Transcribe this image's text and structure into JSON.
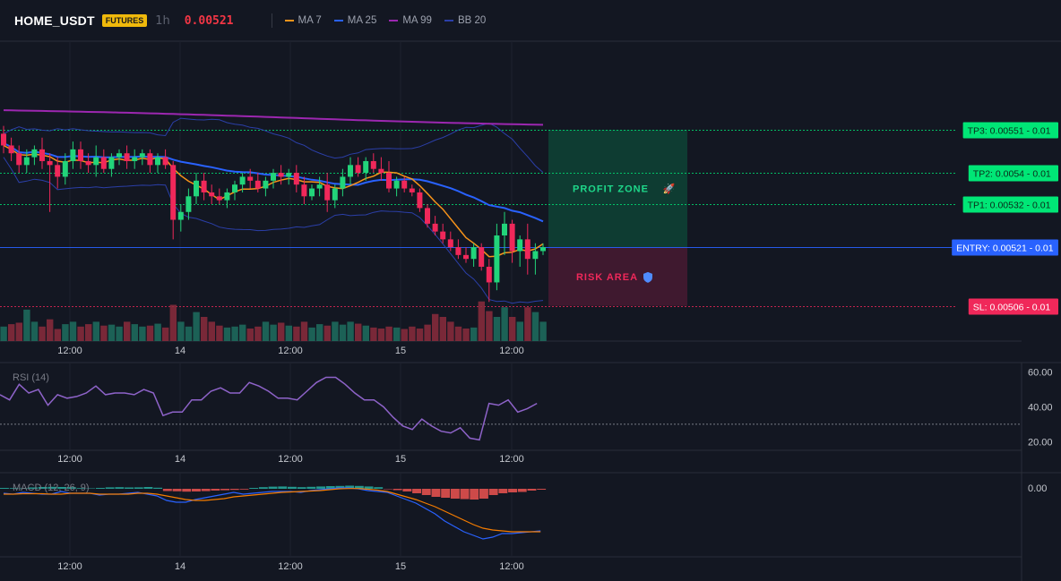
{
  "header": {
    "symbol": "HOME_USDT",
    "badge": "FUTURES",
    "timeframe": "1h",
    "price": "0.00521",
    "legend": [
      {
        "label": "MA 7",
        "color": "#f7931a"
      },
      {
        "label": "MA 25",
        "color": "#2962ff"
      },
      {
        "label": "MA 99",
        "color": "#9c27b0"
      },
      {
        "label": "BB 20",
        "color": "#2b3fa8"
      }
    ]
  },
  "colors": {
    "up": "#22d47a",
    "down": "#f0285a",
    "ma7": "#f7931a",
    "ma25": "#2962ff",
    "ma99": "#9c27b0",
    "bb": "#2b3fa8",
    "rsi": "#8e63c9",
    "macd": "#2962ff",
    "signal": "#f57c00"
  },
  "chart_data": [
    {
      "type": "candlestick",
      "x_ticks": [
        "12:00",
        "14",
        "12:00",
        "15",
        "12:00"
      ],
      "candles_ohlc": [
        [
          0.0055,
          0.00552,
          0.00545,
          0.00547
        ],
        [
          0.00547,
          0.00549,
          0.00543,
          0.00545
        ],
        [
          0.00545,
          0.00547,
          0.0054,
          0.00542
        ],
        [
          0.00542,
          0.00546,
          0.0054,
          0.00544
        ],
        [
          0.00544,
          0.00547,
          0.00542,
          0.00546
        ],
        [
          0.00546,
          0.00549,
          0.00541,
          0.00543
        ],
        [
          0.00543,
          0.00545,
          0.0053,
          0.00542
        ],
        [
          0.00542,
          0.00544,
          0.00536,
          0.00539
        ],
        [
          0.00539,
          0.00545,
          0.00537,
          0.00543
        ],
        [
          0.00543,
          0.00548,
          0.00541,
          0.00546
        ],
        [
          0.00546,
          0.00548,
          0.00541,
          0.00543
        ],
        [
          0.00543,
          0.00545,
          0.0054,
          0.00542
        ],
        [
          0.00542,
          0.00547,
          0.00539,
          0.00544
        ],
        [
          0.00544,
          0.00546,
          0.0054,
          0.00541
        ],
        [
          0.00541,
          0.00545,
          0.00539,
          0.00544
        ],
        [
          0.00544,
          0.00546,
          0.00542,
          0.00545
        ],
        [
          0.00545,
          0.00547,
          0.00541,
          0.00543
        ],
        [
          0.00543,
          0.00546,
          0.00541,
          0.00544
        ],
        [
          0.00544,
          0.00546,
          0.00542,
          0.00545
        ],
        [
          0.00545,
          0.00546,
          0.0054,
          0.00542
        ],
        [
          0.00542,
          0.00545,
          0.0054,
          0.00544
        ],
        [
          0.00544,
          0.00546,
          0.00541,
          0.00542
        ],
        [
          0.00542,
          0.00543,
          0.00523,
          0.00528
        ],
        [
          0.00528,
          0.00532,
          0.00525,
          0.0053
        ],
        [
          0.0053,
          0.00536,
          0.00528,
          0.00534
        ],
        [
          0.00534,
          0.0054,
          0.00532,
          0.00538
        ],
        [
          0.00538,
          0.0054,
          0.00533,
          0.00535
        ],
        [
          0.00535,
          0.00537,
          0.00532,
          0.00534
        ],
        [
          0.00534,
          0.00536,
          0.00532,
          0.00533
        ],
        [
          0.00533,
          0.00536,
          0.00531,
          0.00535
        ],
        [
          0.00535,
          0.00538,
          0.00533,
          0.00537
        ],
        [
          0.00537,
          0.0054,
          0.00535,
          0.00539
        ],
        [
          0.00539,
          0.00541,
          0.00536,
          0.00538
        ],
        [
          0.00538,
          0.0054,
          0.00535,
          0.00536
        ],
        [
          0.00536,
          0.00539,
          0.00534,
          0.00538
        ],
        [
          0.00538,
          0.00541,
          0.00536,
          0.0054
        ],
        [
          0.0054,
          0.00542,
          0.00537,
          0.00539
        ],
        [
          0.00539,
          0.00541,
          0.00537,
          0.0054
        ],
        [
          0.0054,
          0.00542,
          0.00535,
          0.00537
        ],
        [
          0.00537,
          0.00539,
          0.00532,
          0.00534
        ],
        [
          0.00534,
          0.00537,
          0.00533,
          0.00536
        ],
        [
          0.00536,
          0.00539,
          0.00534,
          0.00537
        ],
        [
          0.00537,
          0.0054,
          0.0053,
          0.00533
        ],
        [
          0.00533,
          0.00537,
          0.00531,
          0.00536
        ],
        [
          0.00536,
          0.00541,
          0.00534,
          0.00539
        ],
        [
          0.00539,
          0.00544,
          0.00537,
          0.00542
        ],
        [
          0.00542,
          0.00544,
          0.00539,
          0.0054
        ],
        [
          0.0054,
          0.00544,
          0.00538,
          0.00543
        ],
        [
          0.00543,
          0.00545,
          0.0054,
          0.00541
        ],
        [
          0.00541,
          0.00544,
          0.00538,
          0.0054
        ],
        [
          0.0054,
          0.00543,
          0.00535,
          0.00536
        ],
        [
          0.00536,
          0.00539,
          0.00534,
          0.00538
        ],
        [
          0.00538,
          0.00539,
          0.00535,
          0.00536
        ],
        [
          0.00536,
          0.00537,
          0.00534,
          0.00535
        ],
        [
          0.00535,
          0.00536,
          0.0053,
          0.00531
        ],
        [
          0.00531,
          0.00532,
          0.00526,
          0.00527
        ],
        [
          0.00527,
          0.00529,
          0.00524,
          0.00525
        ],
        [
          0.00525,
          0.00527,
          0.00522,
          0.00523
        ],
        [
          0.00523,
          0.00525,
          0.0052,
          0.00521
        ],
        [
          0.00521,
          0.00523,
          0.00518,
          0.00519
        ],
        [
          0.00519,
          0.00521,
          0.00517,
          0.00518
        ],
        [
          0.00518,
          0.00522,
          0.00516,
          0.00521
        ],
        [
          0.00521,
          0.00522,
          0.00515,
          0.00516
        ],
        [
          0.00516,
          0.00518,
          0.00507,
          0.00512
        ],
        [
          0.00512,
          0.00527,
          0.0051,
          0.00524
        ],
        [
          0.00524,
          0.0053,
          0.00519,
          0.00527
        ],
        [
          0.00527,
          0.00528,
          0.00517,
          0.0052
        ],
        [
          0.0052,
          0.00524,
          0.00516,
          0.00523
        ],
        [
          0.00523,
          0.00527,
          0.00514,
          0.00518
        ],
        [
          0.00518,
          0.00522,
          0.00514,
          0.0052
        ],
        [
          0.0052,
          0.00522,
          0.00519,
          0.00521
        ]
      ],
      "volume_dir": [
        1,
        0,
        0,
        1,
        1,
        0,
        0,
        0,
        1,
        1,
        0,
        0,
        1,
        0,
        1,
        1,
        0,
        1,
        1,
        0,
        1,
        0,
        0,
        1,
        1,
        1,
        0,
        0,
        0,
        1,
        1,
        1,
        0,
        0,
        1,
        1,
        0,
        1,
        0,
        0,
        1,
        1,
        0,
        1,
        1,
        1,
        0,
        1,
        0,
        0,
        0,
        1,
        0,
        0,
        0,
        0,
        0,
        0,
        0,
        0,
        0,
        1,
        0,
        0,
        1,
        1,
        0,
        1,
        0,
        1,
        1
      ],
      "volume": [
        3,
        3.5,
        3.8,
        6.5,
        4,
        3,
        4.5,
        2.5,
        3.5,
        4,
        3,
        3.5,
        4,
        3.2,
        3.4,
        3,
        4,
        3.5,
        3,
        3.2,
        3.6,
        2.8,
        7.5,
        4,
        3,
        6,
        5,
        4,
        3.2,
        2.8,
        3,
        3.4,
        2.6,
        3,
        4,
        3.4,
        3.8,
        3.2,
        3,
        4,
        2.8,
        3.5,
        3.2,
        4,
        3.4,
        4,
        3.6,
        3.2,
        2.8,
        2.6,
        3,
        2.8,
        2.5,
        3,
        2.6,
        3.4,
        5.6,
        5,
        4,
        3,
        2.6,
        2.8,
        8.2,
        6.2,
        5,
        7,
        5,
        4,
        7,
        6,
        4
      ]
    },
    {
      "type": "price_levels",
      "levels": [
        {
          "label": "TP3: 0.00551",
          "qty": "0.01",
          "value": 0.00551,
          "color": "#00e676"
        },
        {
          "label": "TP2: 0.0054",
          "qty": "0.01",
          "value": 0.0054,
          "color": "#00e676"
        },
        {
          "label": "TP1: 0.00532",
          "qty": "0.01",
          "value": 0.00532,
          "color": "#00e676"
        },
        {
          "label": "ENTRY: 0.00521",
          "qty": "0.01",
          "value": 0.00521,
          "color": "#2962ff"
        },
        {
          "label": "SL: 0.00506",
          "qty": "0.01",
          "value": 0.00506,
          "color": "#f0285a"
        }
      ],
      "zones": [
        {
          "label": "PROFIT ZONE",
          "icon": "rocket-icon",
          "from": 0.00521,
          "to": 0.00551
        },
        {
          "label": "RISK AREA",
          "icon": "shield-icon",
          "from": 0.00506,
          "to": 0.00521
        }
      ]
    },
    {
      "type": "line",
      "title": "RSI (14)",
      "y_ticks": [
        "60.00",
        "40.00",
        "20.00"
      ],
      "ylim": [
        15,
        65
      ],
      "reference": 30,
      "values": [
        47,
        44,
        53,
        48,
        50,
        41,
        47,
        45,
        46,
        48,
        52,
        47,
        48,
        48,
        47,
        50,
        48,
        35,
        37,
        37,
        44,
        44,
        49,
        51,
        48,
        48,
        54,
        52,
        49,
        45,
        45,
        44,
        49,
        54,
        57,
        57,
        53,
        48,
        44,
        44,
        40,
        34,
        29,
        27,
        33,
        29,
        26,
        25,
        28,
        22,
        21,
        42,
        41,
        44,
        37,
        39,
        42
      ]
    },
    {
      "type": "bar+line",
      "title": "MACD (12, 26, 9)",
      "y_ticks": [
        "0.00"
      ],
      "hist": [
        1,
        0.8,
        0.6,
        1.5,
        2,
        2.2,
        2,
        1.8,
        0.8,
        0.5,
        1,
        1.6,
        1.8,
        1.5,
        1.6,
        2,
        1.2,
        -2.5,
        -2.8,
        -3.2,
        -3,
        -2.6,
        -2,
        -1.6,
        -1.2,
        -0.8,
        1,
        1.8,
        2.4,
        2.6,
        2.2,
        1.8,
        2.2,
        2.6,
        3,
        3.2,
        3.5,
        3.2,
        2.6,
        1.8,
        -0.5,
        -1.5,
        -3,
        -5,
        -7,
        -9,
        -10,
        -11,
        -11.5,
        -12,
        -11,
        -7,
        -5,
        -4,
        -3.5,
        -2,
        -1
      ],
      "macd": [
        -5,
        -6,
        -4,
        -5,
        -6,
        -6,
        -3,
        -5,
        -5,
        -5,
        -7,
        -6,
        -6,
        -5,
        -4,
        -6,
        -8,
        -13,
        -15,
        -15,
        -12,
        -10,
        -8,
        -6,
        -4,
        -6,
        -5,
        -4,
        -3,
        -3,
        -3,
        -4,
        -2,
        -1,
        0,
        1,
        1,
        0,
        -2,
        -3,
        -4,
        -8,
        -12,
        -16,
        -22,
        -28,
        -36,
        -42,
        -48,
        -52,
        -56,
        -54,
        -50,
        -50,
        -49,
        -48,
        -47
      ],
      "signal": [
        -6,
        -6,
        -5.5,
        -5.5,
        -5.5,
        -6,
        -6,
        -5,
        -5,
        -5,
        -6,
        -6,
        -6,
        -6,
        -5,
        -5,
        -6,
        -8,
        -10,
        -12,
        -13,
        -13,
        -12,
        -11,
        -9,
        -8,
        -7,
        -6,
        -5,
        -4,
        -3.5,
        -3,
        -2.5,
        -2,
        -1,
        0,
        0.3,
        0.3,
        -0.5,
        -1.5,
        -3,
        -6,
        -9,
        -12,
        -16,
        -20,
        -25,
        -30,
        -35,
        -40,
        -44,
        -46,
        -47,
        -48,
        -48,
        -48,
        -48
      ]
    }
  ]
}
